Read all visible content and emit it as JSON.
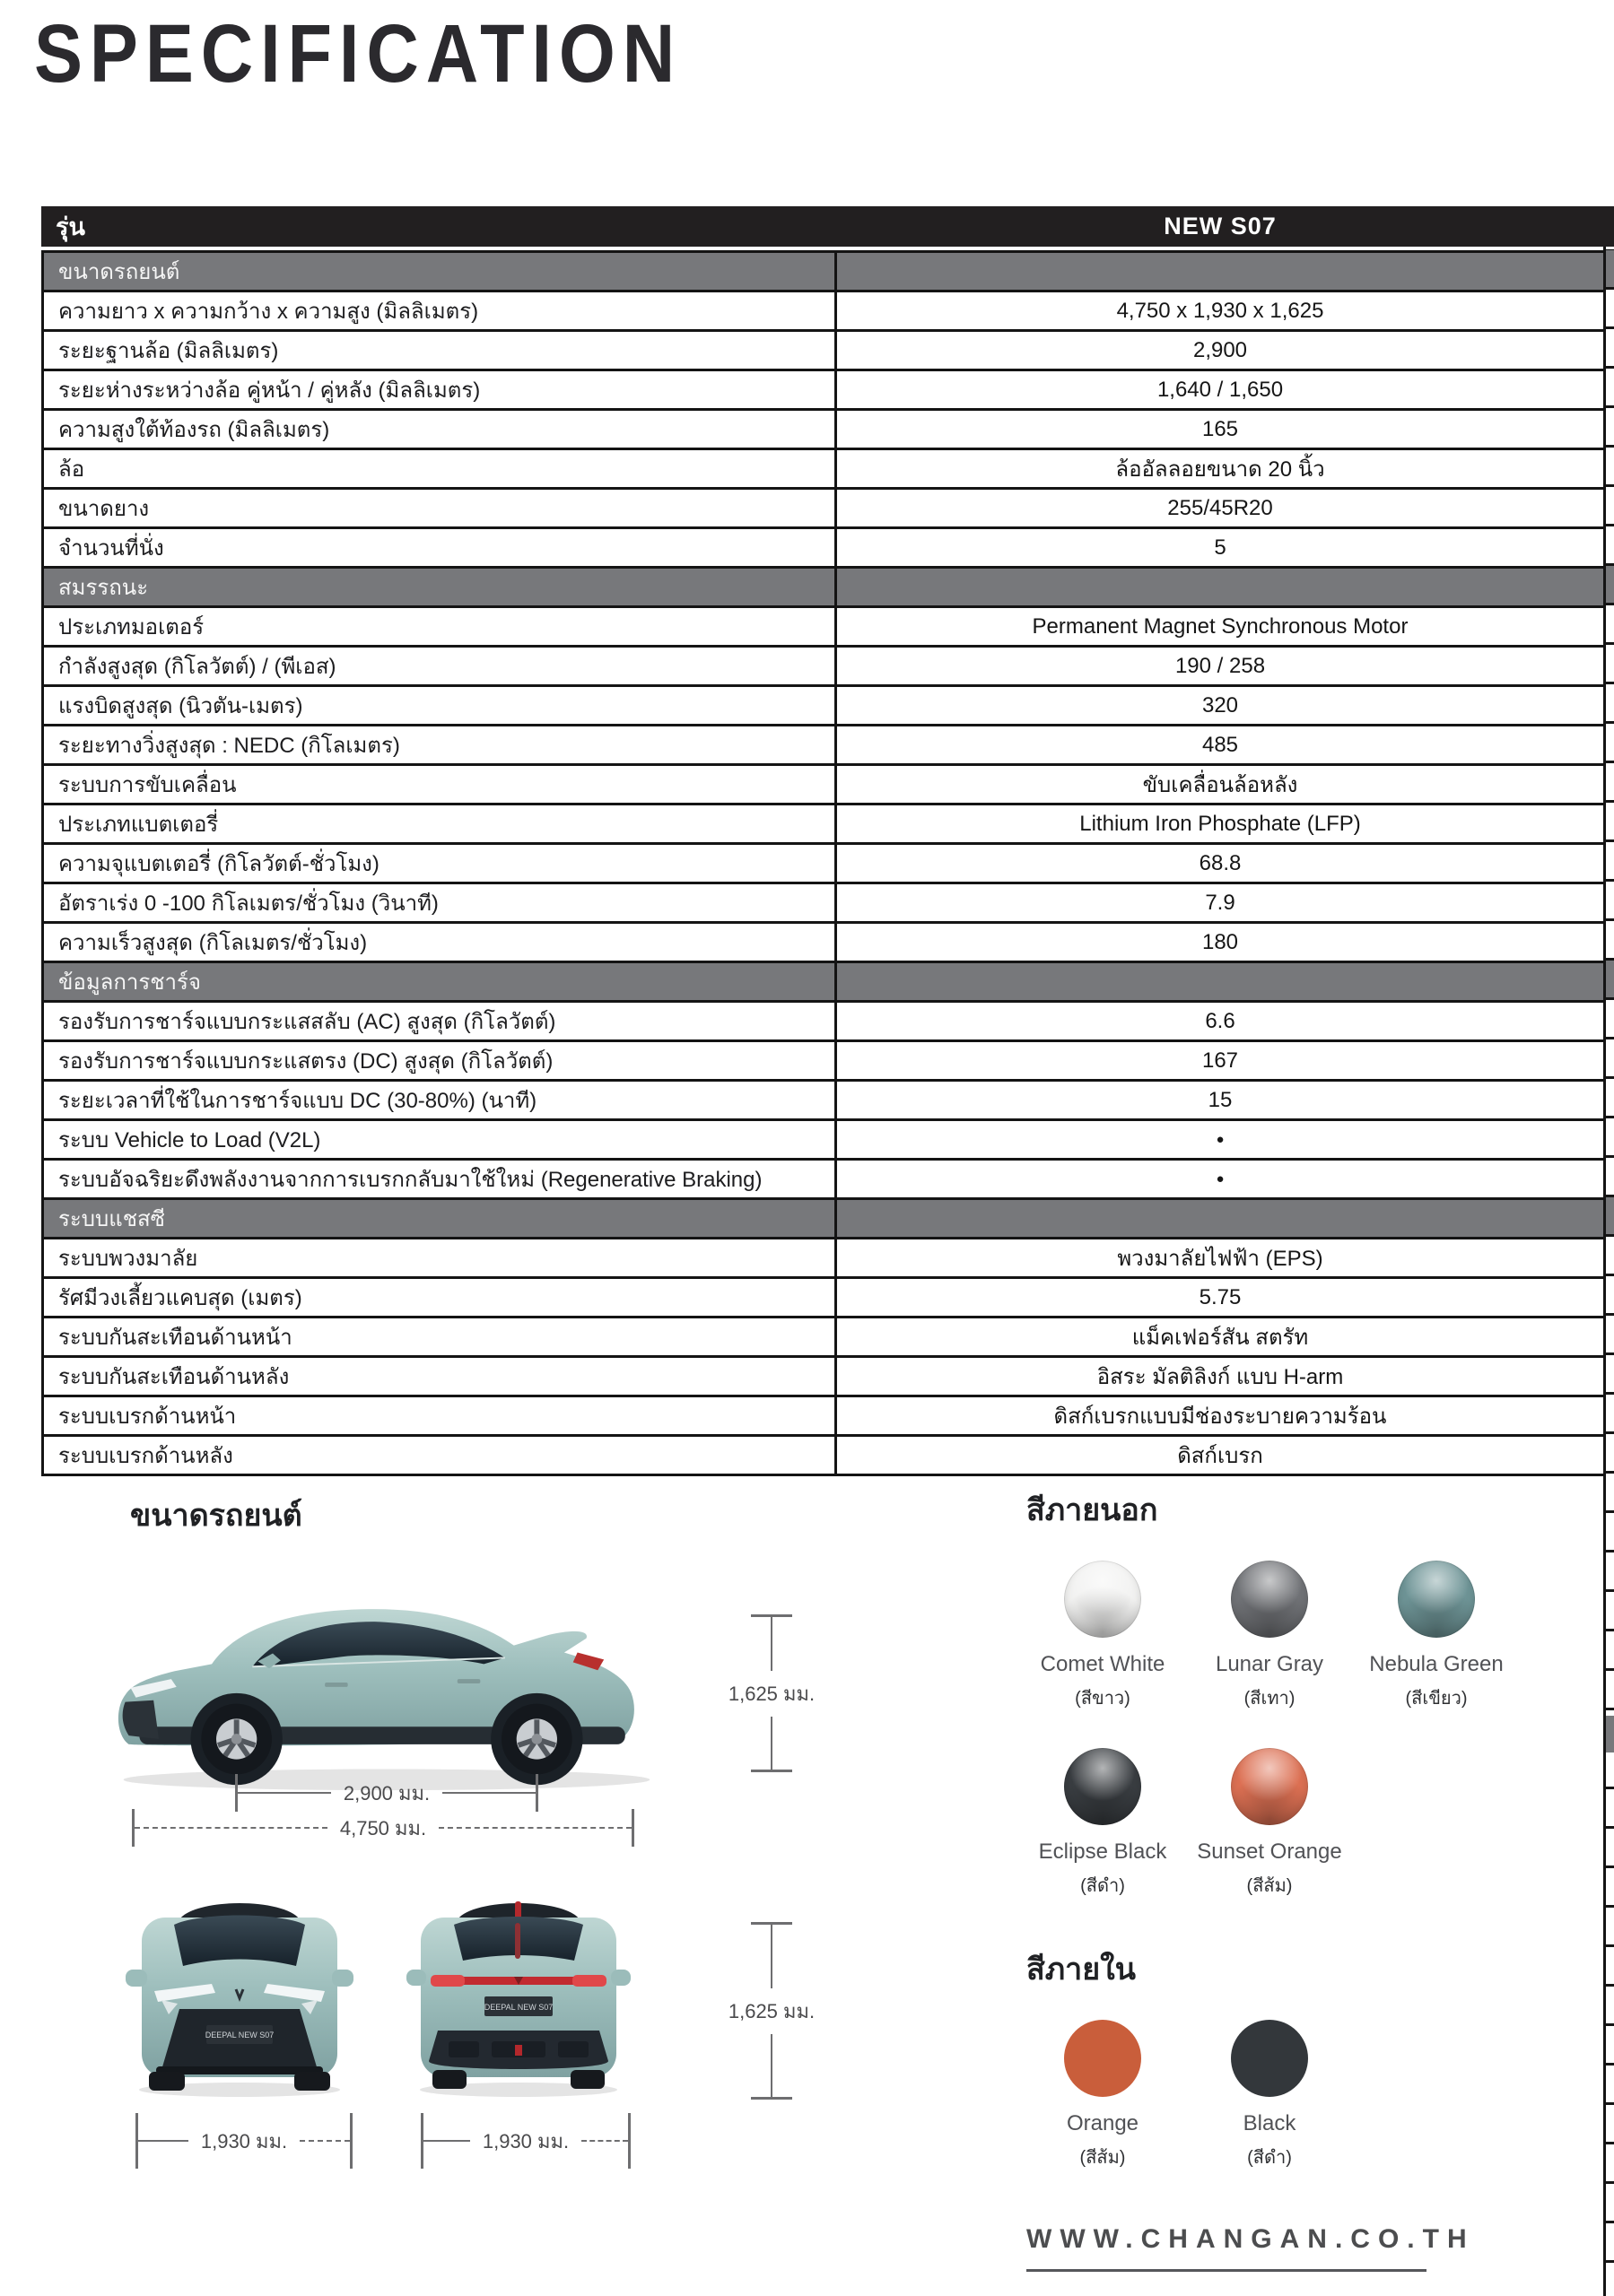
{
  "title": "SPECIFICATION",
  "table": {
    "header": {
      "label": "รุ่น",
      "value": "NEW S07"
    },
    "rows": [
      {
        "type": "section",
        "label": "ขนาดรถยนต์",
        "value": ""
      },
      {
        "type": "data",
        "label": "ความยาว x ความกว้าง x ความสูง (มิลลิเมตร)",
        "value": "4,750 x 1,930 x 1,625"
      },
      {
        "type": "data",
        "label": "ระยะฐานล้อ (มิลลิเมตร)",
        "value": "2,900"
      },
      {
        "type": "data",
        "label": "ระยะห่างระหว่างล้อ คู่หน้า / คู่หลัง (มิลลิเมตร)",
        "value": "1,640 / 1,650"
      },
      {
        "type": "data",
        "label": "ความสูงใต้ท้องรถ (มิลลิเมตร)",
        "value": "165"
      },
      {
        "type": "data",
        "label": "ล้อ",
        "value": "ล้ออัลลอยขนาด 20 นิ้ว"
      },
      {
        "type": "data",
        "label": "ขนาดยาง",
        "value": "255/45R20"
      },
      {
        "type": "data",
        "label": "จำนวนที่นั่ง",
        "value": "5"
      },
      {
        "type": "section",
        "label": "สมรรถนะ",
        "value": ""
      },
      {
        "type": "data",
        "label": "ประเภทมอเตอร์",
        "value": "Permanent Magnet Synchronous Motor"
      },
      {
        "type": "data",
        "label": "กำลังสูงสุด (กิโลวัตต์) / (พีเอส)",
        "value": "190 / 258"
      },
      {
        "type": "data",
        "label": "แรงบิดสูงสุด (นิวตัน-เมตร)",
        "value": "320"
      },
      {
        "type": "data",
        "label": "ระยะทางวิ่งสูงสุด : NEDC (กิโลเมตร)",
        "value": "485"
      },
      {
        "type": "data",
        "label": "ระบบการขับเคลื่อน",
        "value": "ขับเคลื่อนล้อหลัง"
      },
      {
        "type": "data",
        "label": "ประเภทแบตเตอรี่",
        "value": "Lithium Iron Phosphate (LFP)"
      },
      {
        "type": "data",
        "label": "ความจุแบตเตอรี่ (กิโลวัตต์-ชั่วโมง)",
        "value": "68.8"
      },
      {
        "type": "data",
        "label": "อัตราเร่ง 0 -100 กิโลเมตร/ชั่วโมง (วินาที)",
        "value": "7.9"
      },
      {
        "type": "data",
        "label": "ความเร็วสูงสุด (กิโลเมตร/ชั่วโมง)",
        "value": "180"
      },
      {
        "type": "section",
        "label": "ข้อมูลการชาร์จ",
        "value": ""
      },
      {
        "type": "data",
        "label": "รองรับการชาร์จแบบกระแสสลับ (AC) สูงสุด (กิโลวัตต์)",
        "value": "6.6"
      },
      {
        "type": "data",
        "label": "รองรับการชาร์จแบบกระแสตรง (DC) สูงสุด (กิโลวัตต์)",
        "value": "167"
      },
      {
        "type": "data",
        "label": "ระยะเวลาที่ใช้ในการชาร์จแบบ DC (30-80%) (นาที)",
        "value": "15"
      },
      {
        "type": "data",
        "label": "ระบบ Vehicle to Load (V2L)",
        "value": "●"
      },
      {
        "type": "data",
        "label": "ระบบอัจฉริยะดึงพลังงานจากการเบรกกลับมาใช้ใหม่ (Regenerative Braking)",
        "value": "●"
      },
      {
        "type": "section",
        "label": "ระบบแชสซี",
        "value": ""
      },
      {
        "type": "data",
        "label": "ระบบพวงมาลัย",
        "value": "พวงมาลัยไฟฟ้า (EPS)"
      },
      {
        "type": "data",
        "label": "รัศมีวงเลี้ยวแคบสุด (เมตร)",
        "value": "5.75"
      },
      {
        "type": "data",
        "label": "ระบบกันสะเทือนด้านหน้า",
        "value": "แม็คเฟอร์สัน สตรัท"
      },
      {
        "type": "data",
        "label": "ระบบกันสะเทือนด้านหลัง",
        "value": "อิสระ มัลติลิงก์ แบบ H-arm"
      },
      {
        "type": "data",
        "label": "ระบบเบรกด้านหน้า",
        "value": "ดิสก์เบรกแบบมีช่องระบายความร้อน"
      },
      {
        "type": "data",
        "label": "ระบบเบรกด้านหลัง",
        "value": "ดิสก์เบรก"
      }
    ]
  },
  "dimensions": {
    "heading": "ขนาดรถยนต์",
    "side_height": "1,625 มม.",
    "wheelbase": "2,900 มม.",
    "length": "4,750 มม.",
    "front_width": "1,930 มม.",
    "rear_width": "1,930 มม.",
    "rear_height": "1,625 มม.",
    "plate_text": "DEEPAL NEW S07"
  },
  "exterior_colors": {
    "heading": "สีภายนอก",
    "swatches": [
      {
        "name": "Comet White",
        "thai_name": "(สีขาว)",
        "hex": "#f2f2f1"
      },
      {
        "name": "Lunar Gray",
        "thai_name": "(สีเทา)",
        "hex": "#707276"
      },
      {
        "name": "Nebula Green",
        "thai_name": "(สีเขียว)",
        "hex": "#6e9496"
      },
      {
        "name": "Eclipse Black",
        "thai_name": "(สีดำ)",
        "hex": "#393d41"
      },
      {
        "name": "Sunset Orange",
        "thai_name": "(สีส้ม)",
        "hex": "#dc7053"
      }
    ]
  },
  "interior_colors": {
    "heading": "สีภายใน",
    "swatches": [
      {
        "name": "Orange",
        "thai_name": "(สีส้ม)",
        "hex": "#c95e3b"
      },
      {
        "name": "Black",
        "thai_name": "(สีดำ)",
        "hex": "#33373b"
      }
    ]
  },
  "footer": {
    "url": "WWW.CHANGAN.CO.TH"
  }
}
